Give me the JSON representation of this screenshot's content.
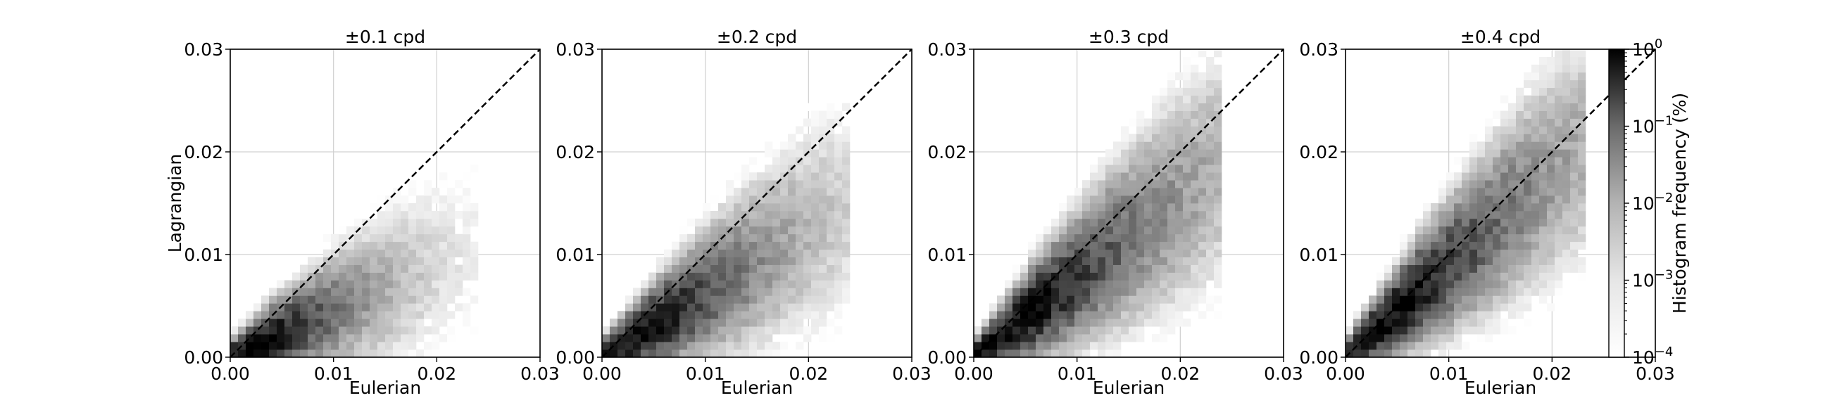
{
  "chart_data": {
    "type": "heatmap",
    "colormap": "Greys",
    "colorbar": {
      "label": "Histogram frequency (%)",
      "scale": "log",
      "range": [
        0.0001,
        1
      ],
      "ticks": [
        {
          "value": 1,
          "base": "10",
          "exp": "0"
        },
        {
          "value": 0.1,
          "base": "10",
          "exp": "−1"
        },
        {
          "value": 0.01,
          "base": "10",
          "exp": "−2"
        },
        {
          "value": 0.001,
          "base": "10",
          "exp": "−3"
        },
        {
          "value": 0.0001,
          "base": "10",
          "exp": "−4"
        }
      ]
    },
    "xlim": [
      0,
      0.03
    ],
    "ylim": [
      0,
      0.03
    ],
    "xticks": [
      0,
      0.01,
      0.02,
      0.03
    ],
    "xtick_labels": [
      "0.00",
      "0.01",
      "0.02",
      "0.03"
    ],
    "yticks": [
      0,
      0.01,
      0.02,
      0.03
    ],
    "ytick_labels": [
      "0.00",
      "0.01",
      "0.02",
      "0.03"
    ],
    "grid": true,
    "reference_line": "y = x (black dashed)",
    "bin_size": 0.00075,
    "panels": [
      {
        "title": "±0.1 cpd",
        "xlabel": "Eulerian",
        "ylabel": "Lagrangian",
        "density": {
          "slope": 0.45,
          "x_extent": 0.024,
          "spread": 0.3,
          "peak": 0.004
        }
      },
      {
        "title": "±0.2 cpd",
        "xlabel": "Eulerian",
        "ylabel": "",
        "density": {
          "slope": 0.62,
          "x_extent": 0.024,
          "spread": 0.33,
          "peak": 0.005
        }
      },
      {
        "title": "±0.3 cpd",
        "xlabel": "Eulerian",
        "ylabel": "",
        "density": {
          "slope": 0.78,
          "x_extent": 0.024,
          "spread": 0.34,
          "peak": 0.006
        }
      },
      {
        "title": "±0.4 cpd",
        "xlabel": "Eulerian",
        "ylabel": "",
        "density": {
          "slope": 0.9,
          "x_extent": 0.0235,
          "spread": 0.34,
          "peak": 0.006
        }
      }
    ]
  }
}
